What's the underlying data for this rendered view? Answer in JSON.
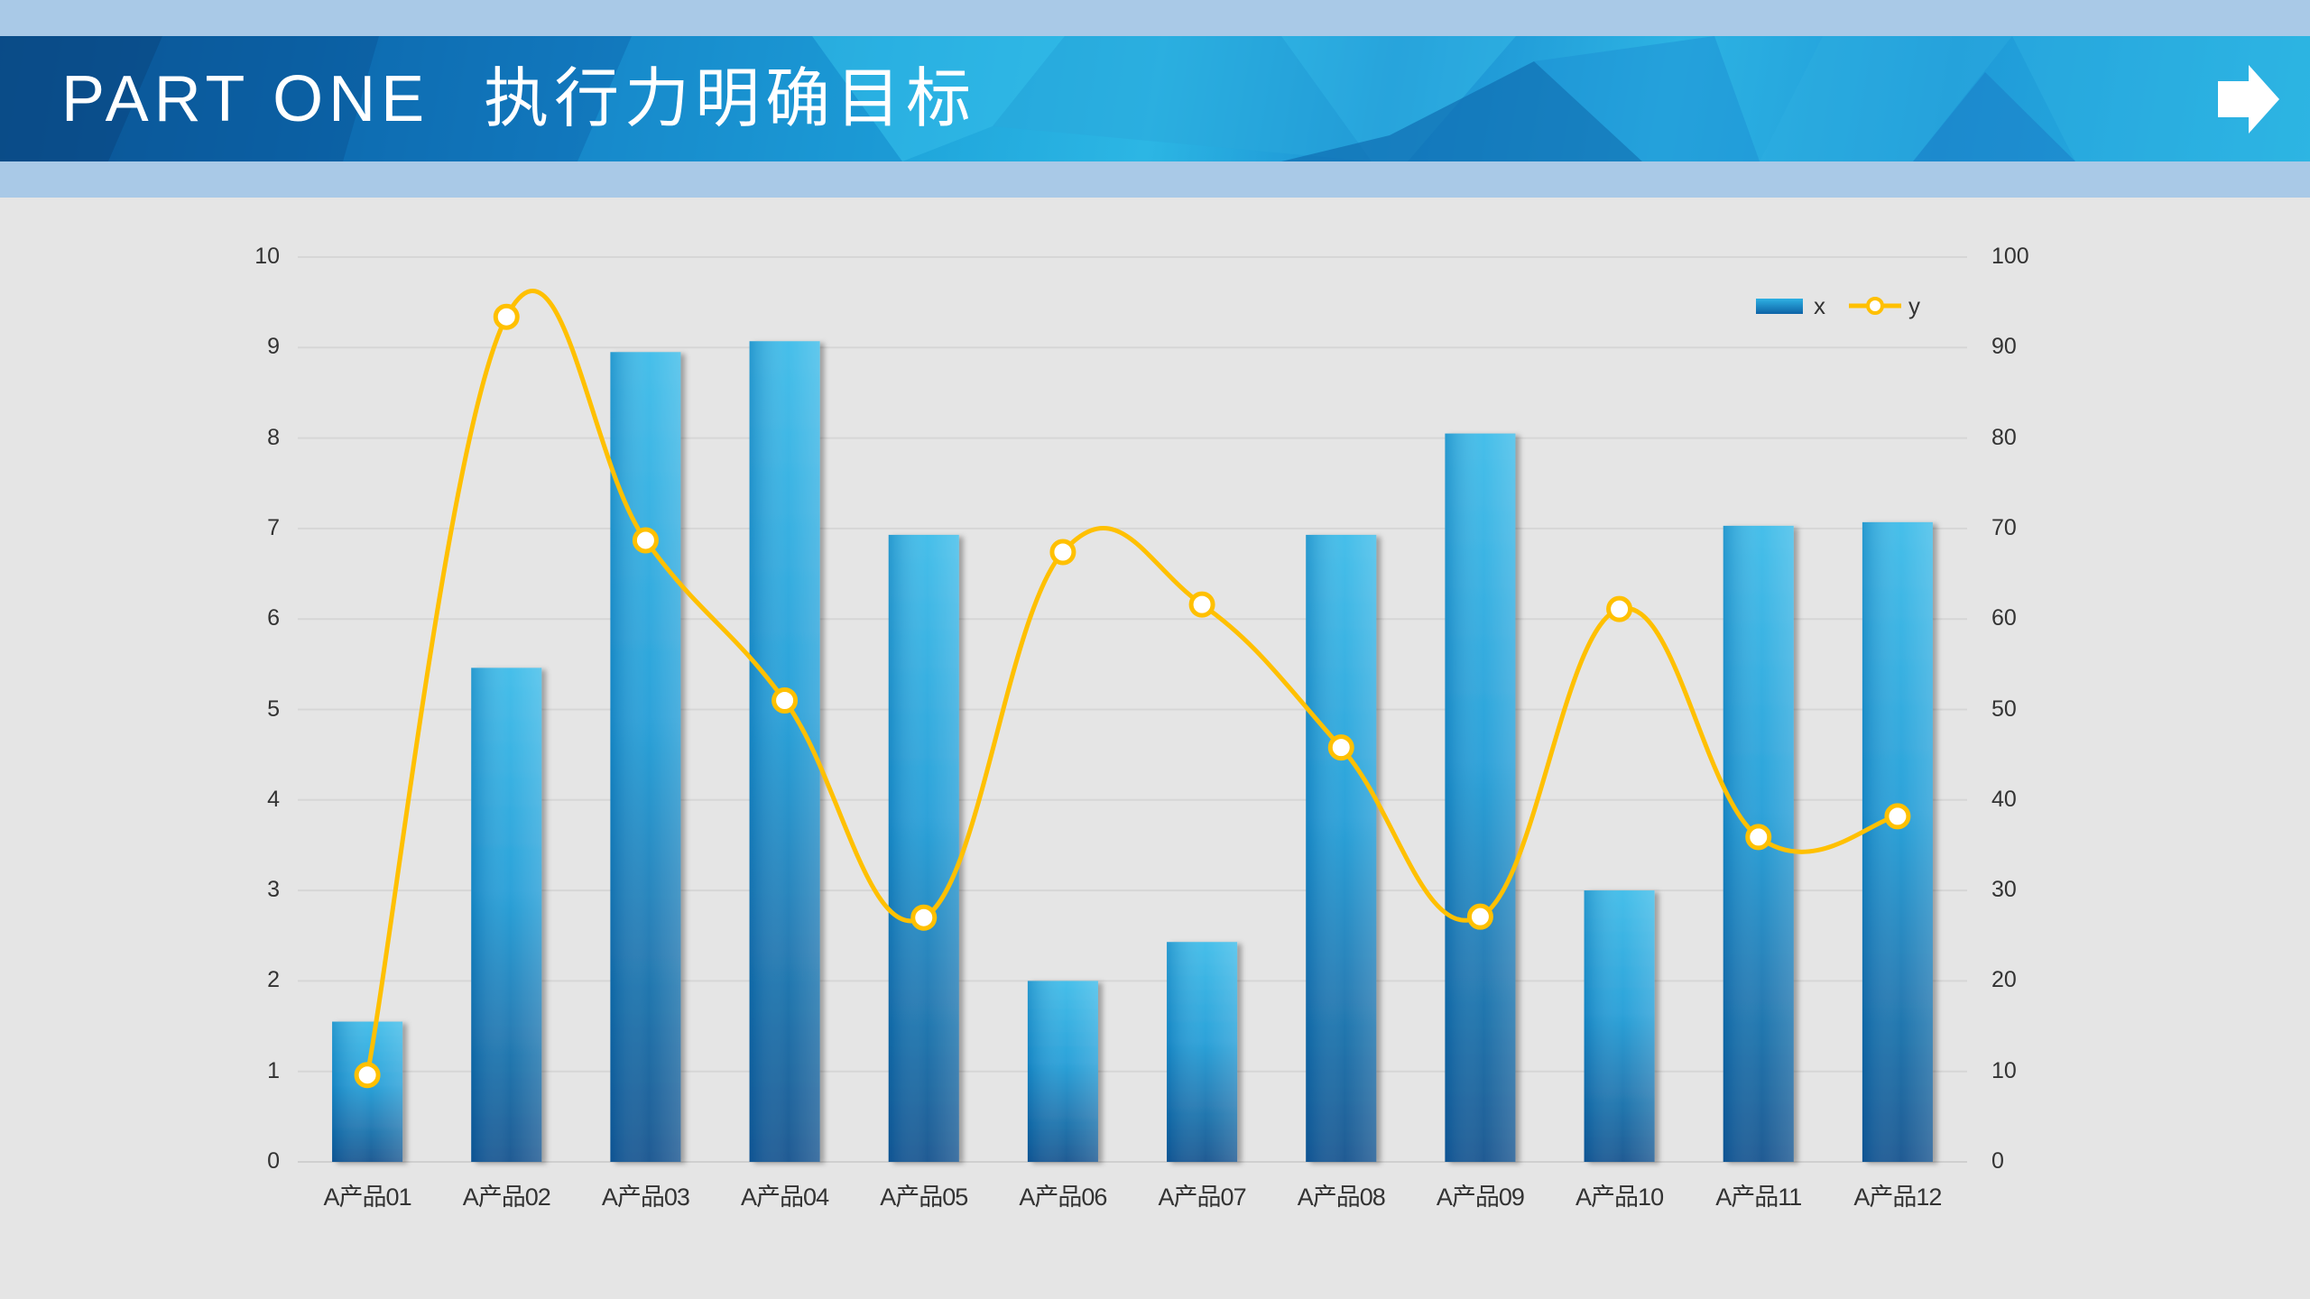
{
  "header": {
    "part_label": "PART ONE",
    "title": "执行力明确目标",
    "next_icon": "arrow-right-icon"
  },
  "colors": {
    "band": "#a9c9e7",
    "banner_dark": "#0b4f8c",
    "banner_light": "#2cb6e4",
    "background": "#e5e5e5",
    "bar_top": "#2eb1e3",
    "bar_bottom": "#0b4d8a",
    "line": "#ffc000",
    "marker_fill": "#ffffff",
    "gridline": "#d6d6d6",
    "text": "#333333"
  },
  "chart_data": {
    "type": "bar+line",
    "title": "",
    "xlabel": "",
    "ylabel": "",
    "y2label": "",
    "categories": [
      "A产品01",
      "A产品02",
      "A产品03",
      "A产品04",
      "A产品05",
      "A产品06",
      "A产品07",
      "A产品08",
      "A产品09",
      "A产品10",
      "A产品11",
      "A产品12"
    ],
    "series": [
      {
        "name": "x",
        "type": "bar",
        "axis": "left",
        "values": [
          1.55,
          5.46,
          8.95,
          9.07,
          6.93,
          2.0,
          2.43,
          6.93,
          8.05,
          3.0,
          7.03,
          7.07
        ]
      },
      {
        "name": "y",
        "type": "line",
        "smooth": true,
        "axis": "right",
        "values": [
          9.6,
          93.4,
          68.7,
          51.0,
          27.0,
          67.4,
          61.6,
          45.8,
          27.1,
          61.1,
          35.9,
          38.2
        ]
      }
    ],
    "ylim": [
      0,
      10
    ],
    "y2lim": [
      0,
      100
    ],
    "yticks": [
      "0",
      "1",
      "2",
      "3",
      "4",
      "5",
      "6",
      "7",
      "8",
      "9",
      "10"
    ],
    "y2ticks": [
      "0",
      "10",
      "20",
      "30",
      "40",
      "50",
      "60",
      "70",
      "80",
      "90",
      "100"
    ],
    "grid": true,
    "legend": {
      "position": "top-right",
      "entries": [
        "x",
        "y"
      ]
    }
  }
}
